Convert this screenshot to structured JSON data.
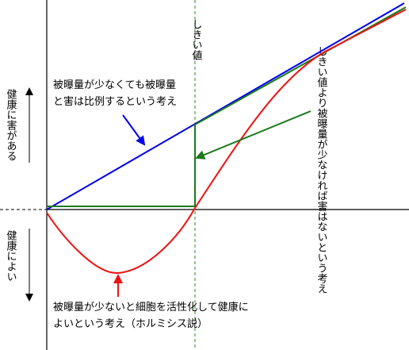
{
  "colors": {
    "lnt_line": "#0000ee",
    "threshold_model": "#1a7a1a",
    "hormesis_curve": "#ee1111",
    "threshold_marker": "#2a8a2a",
    "axis": "#000000"
  },
  "labels": {
    "y_axis_positive": "健康に害がある",
    "y_axis_negative": "健康によい",
    "threshold": "しきい値",
    "threshold_model": "しきい値より被曝量が少なければ害はないという考え",
    "lnt_line1": "被曝量が少なくても被曝量",
    "lnt_line2": "と害は比例するという考え",
    "hormesis_line1": "被曝量が少ないと細胞を活性化して健康に",
    "hormesis_line2": "よいという考え（ホルミシス説）"
  }
}
